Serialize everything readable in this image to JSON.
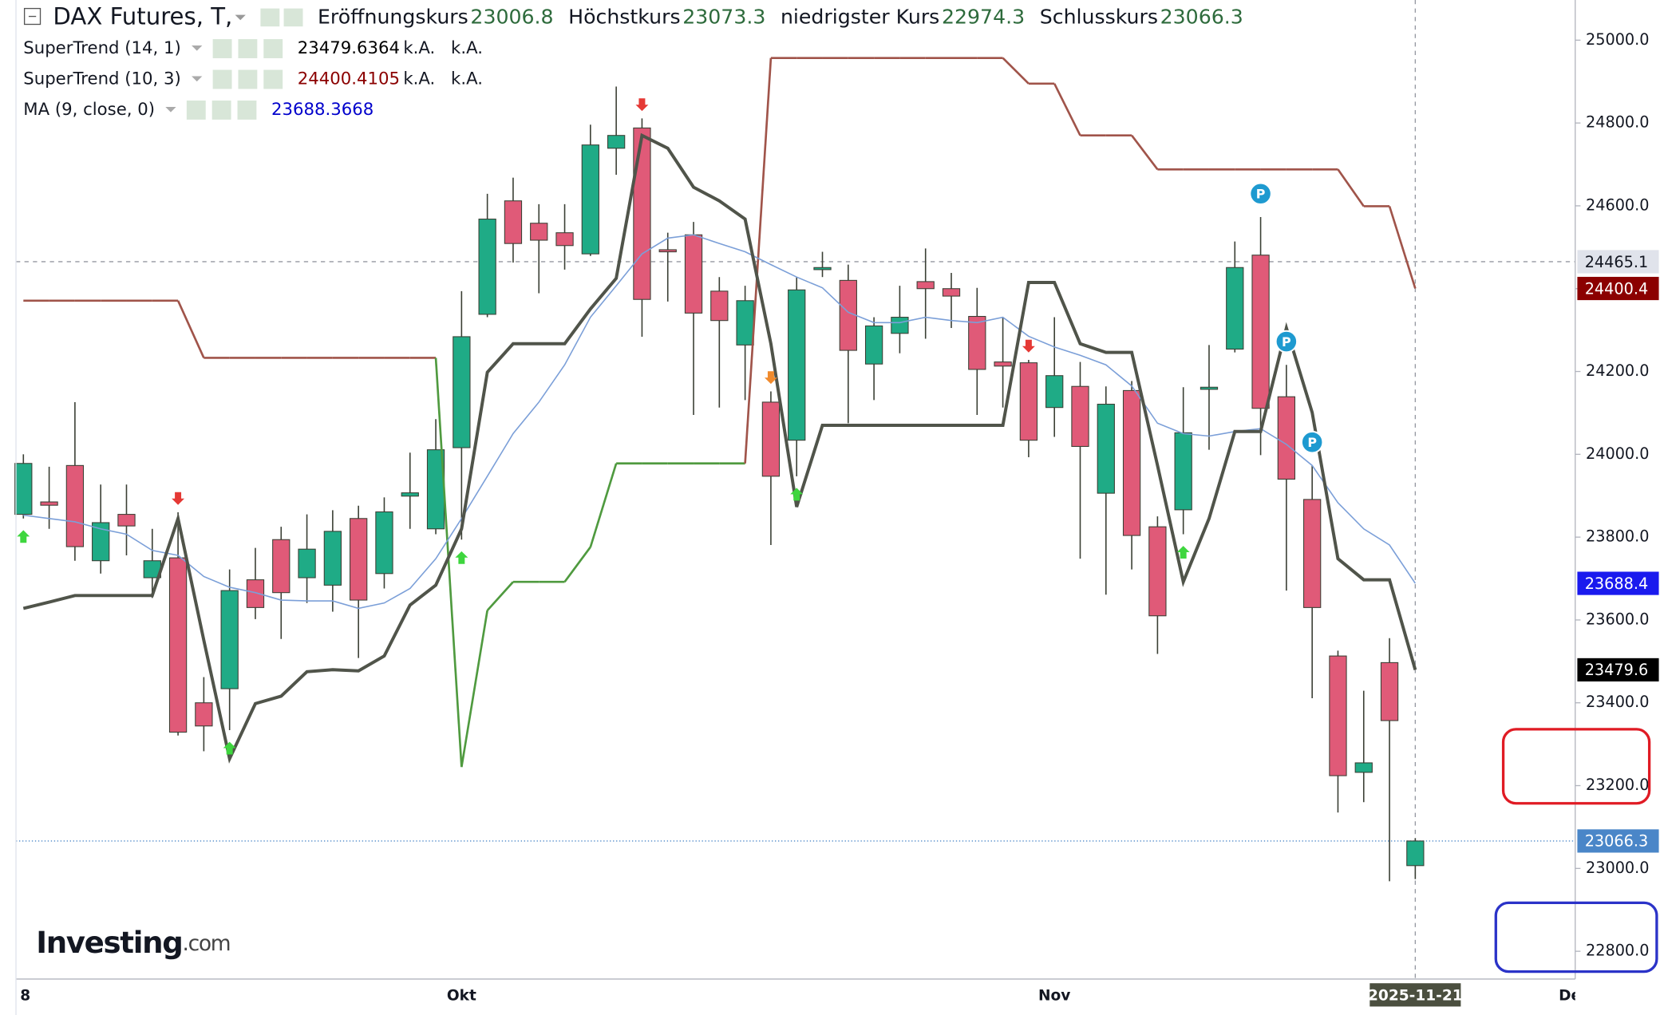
{
  "chart_data": {
    "type": "candlestick",
    "title": "DAX Futures, T,",
    "ohlc_labels": [
      "Eröffnungskurs",
      "Höchstkurs",
      "niedrigster Kurs",
      "Schlusskurs"
    ],
    "na_label": "k.A.",
    "watermark": [
      "Investing",
      ".com"
    ],
    "categories": [
      "8",
      null,
      null,
      null,
      null,
      null,
      null,
      null,
      null,
      null,
      null,
      null,
      null,
      null,
      null,
      null,
      null,
      "Okt",
      null,
      null,
      null,
      null,
      null,
      null,
      null,
      null,
      null,
      null,
      null,
      null,
      null,
      null,
      null,
      null,
      null,
      null,
      null,
      null,
      null,
      null,
      "Nov",
      null,
      null,
      null,
      null,
      null,
      null,
      null,
      null,
      null,
      null,
      null,
      null,
      null,
      "2025-11-21",
      null,
      null,
      null,
      null,
      null,
      "De"
    ],
    "open": [
      23855,
      23885,
      23973,
      23743,
      23855,
      23702,
      23750,
      23400,
      23434,
      23697,
      23794,
      23702,
      23684,
      23845,
      23712,
      23899,
      23820,
      24016,
      24338,
      24612,
      24558,
      24535,
      24484,
      24739,
      24788,
      24494,
      24530,
      24394,
      24264,
      24126,
      24034,
      24446,
      24420,
      24218,
      24292,
      24417,
      24400,
      24333,
      24223,
      24221,
      24113,
      24164,
      23906,
      24154,
      23825,
      23866,
      24157,
      24254,
      24481,
      24139,
      23891,
      23513,
      23232,
      23497,
      23006.8,
      null,
      null,
      null,
      null,
      null,
      null
    ],
    "high": [
      24000,
      23970,
      24126,
      23927,
      23927,
      23820,
      23860,
      23462,
      23722,
      23774,
      23825,
      23855,
      23865,
      23876,
      23896,
      24004,
      24085,
      24394,
      24629,
      24668,
      24604,
      24604,
      24796,
      24888,
      24811,
      24535,
      24561,
      24428,
      24407,
      24152,
      24428,
      24489,
      24458,
      24331,
      24407,
      24497,
      24438,
      24402,
      24331,
      24228,
      24331,
      24223,
      24164,
      24177,
      23850,
      24162,
      24264,
      24514,
      24573,
      24216,
      23973,
      23526,
      23429,
      23556,
      23073.3,
      null,
      null,
      null,
      null,
      null,
      null
    ],
    "low": [
      23845,
      23820,
      23743,
      23712,
      23756,
      23653,
      23321,
      23283,
      23334,
      23602,
      23554,
      23641,
      23620,
      23508,
      23676,
      23820,
      23807,
      23794,
      24331,
      24463,
      24389,
      24446,
      24479,
      24675,
      24284,
      24369,
      24095,
      24113,
      24131,
      23781,
      23947,
      24428,
      24075,
      24131,
      24244,
      24279,
      24305,
      24095,
      24113,
      23993,
      24042,
      23748,
      23661,
      23722,
      23518,
      23807,
      24011,
      24246,
      23998,
      23671,
      23411,
      23135,
      23160,
      22969,
      22974.3,
      null,
      null,
      null,
      null,
      null,
      null
    ],
    "close": [
      23978,
      23877,
      23777,
      23835,
      23827,
      23743,
      23329,
      23344,
      23671,
      23630,
      23666,
      23771,
      23814,
      23648,
      23861,
      23907,
      24011,
      24284,
      24568,
      24509,
      24517,
      24504,
      24747,
      24770,
      24374,
      24489,
      24341,
      24323,
      24371,
      23947,
      24397,
      24451,
      24251,
      24310,
      24331,
      24400,
      24382,
      24205,
      24213,
      24034,
      24190,
      24019,
      24121,
      23804,
      23610,
      24052,
      24162,
      24451,
      24111,
      23940,
      23630,
      23224,
      23255,
      23357,
      23066.3,
      null,
      null,
      null,
      null,
      null,
      null
    ],
    "up_color": "#1fab86",
    "down_color": "#e05a78",
    "series": [
      {
        "name": "SuperTrend (14, 1)",
        "color": "#50544a",
        "value_color": "#000000",
        "values": [
          23628,
          23643,
          23659,
          23659,
          23659,
          23659,
          23845,
          23551,
          23265,
          23398,
          23416,
          23475,
          23480,
          23477,
          23513,
          23636,
          23684,
          23820,
          24198,
          24267,
          24267,
          24267,
          24351,
          24425,
          24770,
          24739,
          24645,
          24612,
          24568,
          24267,
          23873,
          24070,
          24070,
          24070,
          24070,
          24070,
          24070,
          24070,
          24070,
          24415,
          24415,
          24267,
          24246,
          24246,
          23973,
          23692,
          23845,
          24055,
          24055,
          24305,
          24101,
          23748,
          23697,
          23697,
          23479.6364,
          null,
          null,
          null,
          null,
          null,
          null
        ]
      },
      {
        "name": "SuperTrend (10, 3)",
        "color": "#a0544a",
        "up_color": "#4f9a3f",
        "value_color": "#8b0000",
        "trend": [
          "down",
          "down",
          "down",
          "down",
          "down",
          "down",
          "down",
          "down",
          "down",
          "down",
          "down",
          "down",
          "down",
          "down",
          "down",
          "down",
          "down",
          "up",
          "up",
          "up",
          "up",
          "up",
          "up",
          "up",
          "up",
          "up",
          "up",
          "up",
          "up",
          "down",
          "down",
          "down",
          "down",
          "down",
          "down",
          "down",
          "down",
          "down",
          "down",
          "down",
          "down",
          "down",
          "down",
          "down",
          "down",
          "down",
          "down",
          "down",
          "down",
          "down",
          "down",
          "down",
          "down",
          "down",
          "down",
          null,
          null,
          null,
          null,
          null,
          null
        ],
        "values": [
          24371,
          24371,
          24371,
          24371,
          24371,
          24371,
          24371,
          24233,
          24233,
          24233,
          24233,
          24233,
          24233,
          24233,
          24233,
          24233,
          24233,
          23245,
          23623,
          23692,
          23692,
          23692,
          23776,
          23978,
          23978,
          23978,
          23978,
          23978,
          23978,
          24957,
          24957,
          24957,
          24957,
          24957,
          24957,
          24957,
          24957,
          24957,
          24957,
          24895,
          24895,
          24770,
          24770,
          24770,
          24688,
          24688,
          24688,
          24688,
          24688,
          24688,
          24688,
          24688,
          24599,
          24599,
          24400.4105,
          null,
          null,
          null,
          null,
          null,
          null
        ]
      },
      {
        "name": "MA (9, close, 0)",
        "color": "#7b9fd8",
        "value_color": "#0000cc",
        "values": [
          23853,
          23845,
          23837,
          23820,
          23807,
          23768,
          23756,
          23705,
          23679,
          23666,
          23648,
          23646,
          23646,
          23628,
          23641,
          23676,
          23748,
          23845,
          23947,
          24050,
          24126,
          24216,
          24331,
          24407,
          24484,
          24522,
          24530,
          24509,
          24489,
          24458,
          24428,
          24402,
          24343,
          24318,
          24318,
          24331,
          24323,
          24318,
          24331,
          24285,
          24259,
          24239,
          24216,
          24165,
          24075,
          24050,
          24044,
          24055,
          24062,
          24024,
          23973,
          23883,
          23820,
          23781,
          23688.3668,
          null,
          null,
          null,
          null,
          null,
          null
        ]
      }
    ],
    "markers": [
      {
        "at": 0,
        "kind": "up"
      },
      {
        "at": 6,
        "kind": "down"
      },
      {
        "at": 8,
        "kind": "up"
      },
      {
        "at": 17,
        "kind": "up"
      },
      {
        "at": 24,
        "kind": "down"
      },
      {
        "at": 29,
        "kind": "warn"
      },
      {
        "at": 30,
        "kind": "up"
      },
      {
        "at": 39,
        "kind": "down"
      },
      {
        "at": 45,
        "kind": "up"
      },
      {
        "at": 48,
        "kind": "pivot",
        "label": "P"
      },
      {
        "at": 49,
        "kind": "pivot",
        "label": "P"
      },
      {
        "at": 50,
        "kind": "pivot",
        "label": "P"
      }
    ],
    "ylim": [
      22733,
      25097
    ],
    "yticks": [
      {
        "value": 25000,
        "label": "25000.0"
      },
      {
        "value": 24800,
        "label": "24800.0"
      },
      {
        "value": 24600,
        "label": "24600.0"
      },
      {
        "value": 24400,
        "label": "24400.0"
      },
      {
        "value": 24200,
        "label": "24200.0"
      },
      {
        "value": 24000,
        "label": "24000.0"
      },
      {
        "value": 23800,
        "label": "23800.0"
      },
      {
        "value": 23600,
        "label": "23600.0"
      },
      {
        "value": 23400,
        "label": "23400.0"
      },
      {
        "value": 23200,
        "label": "23200.0"
      },
      {
        "value": 23000,
        "label": "23000.0"
      },
      {
        "value": 22800,
        "label": "22800.0"
      }
    ],
    "price_labels": [
      {
        "value": 24465.1,
        "bg": "#e0e3eb",
        "fg": "#131722",
        "line": "dashed"
      },
      {
        "value": 24400.4,
        "bg": "#8b0000",
        "fg": "#ffffff"
      },
      {
        "value": 23688.4,
        "bg": "#1a1aee",
        "fg": "#ffffff"
      },
      {
        "value": 23479.6,
        "bg": "#000000",
        "fg": "#ffffff"
      },
      {
        "value": 23066.3,
        "bg": "#4a86c8",
        "fg": "#ffffff",
        "line": "dotted"
      }
    ],
    "grid": false
  }
}
